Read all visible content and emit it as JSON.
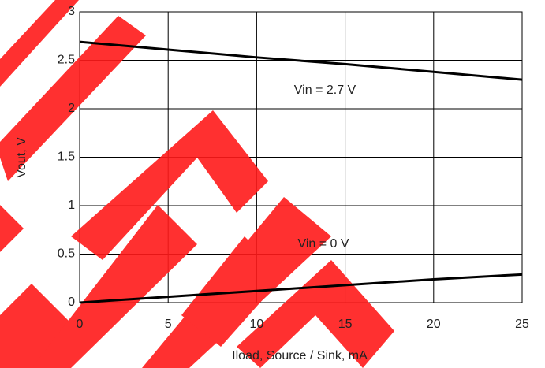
{
  "chart_data": {
    "type": "line",
    "x_label": "Iload, Source / Sink, mA",
    "y_label": "Vout, V",
    "x": [
      0,
      5,
      10,
      15,
      20,
      25
    ],
    "series": [
      {
        "name": "Vin = 2.7 V",
        "color": "#000000",
        "values": [
          2.69,
          2.61,
          2.53,
          2.46,
          2.38,
          2.3
        ]
      },
      {
        "name": "Vin = 0 V",
        "color": "#000000",
        "values": [
          0,
          0.06,
          0.12,
          0.18,
          0.24,
          0.29
        ]
      }
    ],
    "xlim": [
      0,
      25
    ],
    "xticks": [
      0,
      5,
      10,
      15,
      20,
      25
    ],
    "ylim": [
      0,
      3
    ],
    "yticks": [
      0,
      0.5,
      1,
      1.5,
      2,
      2.5,
      3
    ],
    "grid": true
  }
}
